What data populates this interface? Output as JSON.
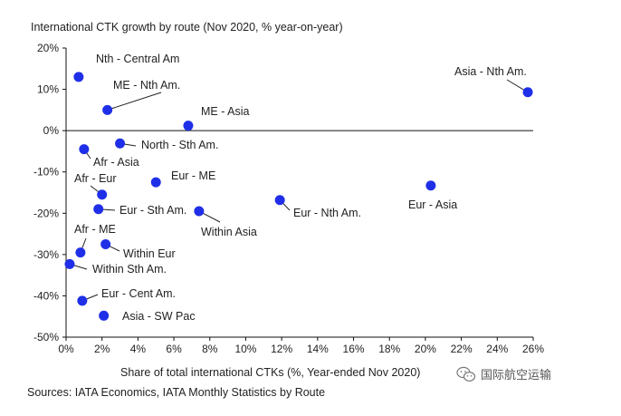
{
  "chart_data": {
    "type": "scatter",
    "title": "International CTK growth by route (Nov 2020, % year-on-year)",
    "xlabel": "Share of total international CTKs (%, Year-ended Nov 2020)",
    "ylabel": "",
    "xlim": [
      0,
      26
    ],
    "ylim": [
      -50,
      20
    ],
    "x_ticks": [
      0,
      2,
      4,
      6,
      8,
      10,
      12,
      14,
      16,
      18,
      20,
      22,
      24,
      26
    ],
    "x_tick_labels": [
      "0%",
      "2%",
      "4%",
      "6%",
      "8%",
      "10%",
      "12%",
      "14%",
      "16%",
      "18%",
      "20%",
      "22%",
      "24%",
      "26%"
    ],
    "y_ticks": [
      20,
      10,
      0,
      -10,
      -20,
      -30,
      -40,
      -50
    ],
    "y_tick_labels": [
      "20%",
      "10%",
      "0%",
      "-10%",
      "-20%",
      "-30%",
      "-40%",
      "-50%"
    ],
    "grid": false,
    "marker_color": "#1f2fe8",
    "points": [
      {
        "label": "Nth - Central Am",
        "x": 0.7,
        "y": 13.0
      },
      {
        "label": "ME - Nth Am.",
        "x": 2.3,
        "y": 5.0
      },
      {
        "label": "ME - Asia",
        "x": 6.8,
        "y": 1.2
      },
      {
        "label": "Asia - Nth Am.",
        "x": 25.7,
        "y": 9.3
      },
      {
        "label": "North - Sth Am.",
        "x": 3.0,
        "y": -3.1
      },
      {
        "label": "Afr - Asia",
        "x": 1.0,
        "y": -4.5
      },
      {
        "label": "Eur - ME",
        "x": 5.0,
        "y": -12.5
      },
      {
        "label": "Afr - Eur",
        "x": 2.0,
        "y": -15.5
      },
      {
        "label": "Eur - Sth Am.",
        "x": 1.8,
        "y": -19.0
      },
      {
        "label": "Within Asia",
        "x": 7.4,
        "y": -19.5
      },
      {
        "label": "Eur - Nth Am.",
        "x": 11.9,
        "y": -16.8
      },
      {
        "label": "Eur - Asia",
        "x": 20.3,
        "y": -13.3
      },
      {
        "label": "Afr - ME",
        "x": 0.8,
        "y": -29.5
      },
      {
        "label": "Within Eur",
        "x": 2.2,
        "y": -27.5
      },
      {
        "label": "Within Sth Am.",
        "x": 0.2,
        "y": -32.3
      },
      {
        "label": "Eur - Cent Am.",
        "x": 0.9,
        "y": -41.2
      },
      {
        "label": "Asia - SW Pac",
        "x": 2.1,
        "y": -44.8
      }
    ]
  },
  "source": "Sources: IATA Economics, IATA Monthly Statistics by Route",
  "watermark": {
    "text": "国际航空运输",
    "icon": "wechat-icon"
  }
}
